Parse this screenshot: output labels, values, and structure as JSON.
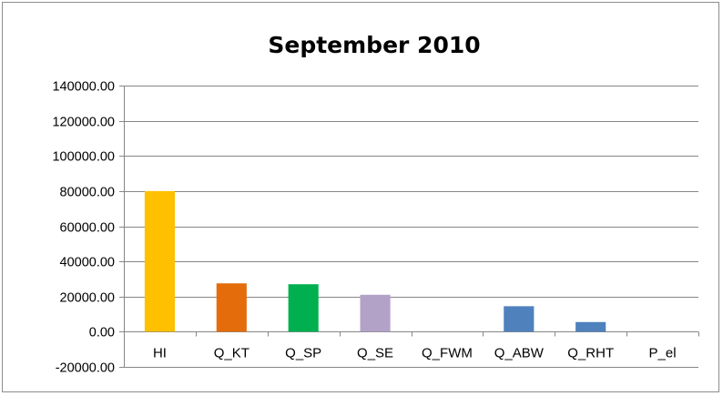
{
  "chart_data": {
    "type": "bar",
    "title": "September 2010",
    "xlabel": "",
    "ylabel": "",
    "categories": [
      "HI",
      "Q_KT",
      "Q_SP",
      "Q_SE",
      "Q_FWM",
      "Q_ABW",
      "Q_RHT",
      "P_el"
    ],
    "values": [
      80000,
      27500,
      27000,
      21000,
      0,
      14500,
      5500,
      0
    ],
    "colors": [
      "#ffc000",
      "#e46c0a",
      "#00b050",
      "#b3a2c7",
      "#4f81bd",
      "#4f81bd",
      "#4f81bd",
      "#4f81bd"
    ],
    "ylim": [
      -20000,
      140000
    ],
    "yticks": [
      {
        "value": 140000,
        "label": "140000.00"
      },
      {
        "value": 120000,
        "label": "120000.00"
      },
      {
        "value": 100000,
        "label": "100000.00"
      },
      {
        "value": 80000,
        "label": "80000.00"
      },
      {
        "value": 60000,
        "label": "60000.00"
      },
      {
        "value": 40000,
        "label": "40000.00"
      },
      {
        "value": 20000,
        "label": "20000.00"
      },
      {
        "value": 0,
        "label": "0.00"
      },
      {
        "value": -20000,
        "label": "-20000.00"
      }
    ],
    "grid": true,
    "legend": "none"
  }
}
